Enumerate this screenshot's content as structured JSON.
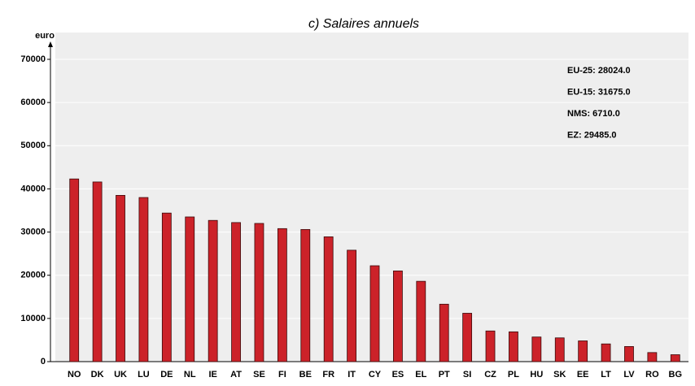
{
  "chart_data": {
    "type": "bar",
    "title": "c) Salaires annuels",
    "y_label": "euro",
    "categories": [
      "NO",
      "DK",
      "UK",
      "LU",
      "DE",
      "NL",
      "IE",
      "AT",
      "SE",
      "FI",
      "BE",
      "FR",
      "IT",
      "CY",
      "ES",
      "EL",
      "PT",
      "SI",
      "CZ",
      "PL",
      "HU",
      "SK",
      "EE",
      "LT",
      "LV",
      "RO",
      "BG"
    ],
    "values": [
      42300,
      41600,
      38500,
      38000,
      34400,
      33500,
      32700,
      32200,
      32000,
      30800,
      30600,
      28900,
      25800,
      22200,
      21000,
      18600,
      13300,
      11200,
      7100,
      6900,
      5700,
      5500,
      4800,
      4100,
      3500,
      2100,
      1600
    ],
    "color": "#cc2229",
    "ylim": [
      0,
      70000
    ],
    "yticks": [
      0,
      10000,
      20000,
      30000,
      40000,
      50000,
      60000,
      70000
    ],
    "grid": true,
    "annotations": [
      "EU-25: 28024.0",
      "EU-15: 31675.0",
      "NMS: 6710.0",
      "EZ: 29485.0"
    ]
  }
}
